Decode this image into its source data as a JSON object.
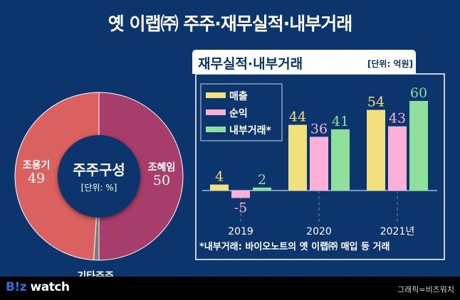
{
  "header": {
    "title": "옛 이랩㈜ 주주·재무실적·내부거래"
  },
  "chart_data": [
    {
      "type": "pie",
      "title": "주주구성",
      "unit_label": "[단위: %]",
      "slices": [
        {
          "label": "조혜임",
          "value": 50,
          "color": "#a63d6a"
        },
        {
          "label": "기타주주",
          "value": 1,
          "color": "#7a7a7a"
        },
        {
          "label": "조용기",
          "value": 49,
          "color": "#db6060"
        }
      ]
    },
    {
      "type": "bar",
      "title": "재무실적·내부거래",
      "unit_label": "[단위: 억원]",
      "categories": [
        "2019",
        "2020",
        "2021년"
      ],
      "series": [
        {
          "name": "매출",
          "values": [
            4,
            44,
            54
          ],
          "color": "#f2e07c"
        },
        {
          "name": "순익",
          "values": [
            -5,
            36,
            43
          ],
          "color": "#fbb0d8"
        },
        {
          "name": "내부거래*",
          "values": [
            2,
            41,
            60
          ],
          "color": "#8fe09c"
        }
      ],
      "ylim": [
        -5,
        60
      ],
      "legend": "top-left",
      "footnote": "*내부거래: 바이오노트의 옛 이랩㈜ 매입 등 거래"
    }
  ],
  "footer": {
    "brand_b": "B!z",
    "brand_w": " watch",
    "credit": "그래픽=비즈워치"
  }
}
